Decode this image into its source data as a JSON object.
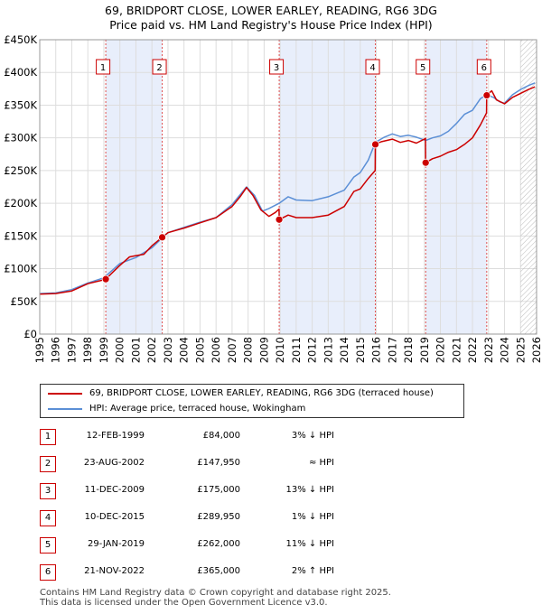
{
  "title_line1": "69, BRIDPORT CLOSE, LOWER EARLEY, READING, RG6 3DG",
  "title_line2": "Price paid vs. HM Land Registry's House Price Index (HPI)",
  "chart_data": {
    "type": "line",
    "ylim": [
      0,
      450000
    ],
    "xlim": [
      1995,
      2026
    ],
    "y_ticks": [
      0,
      50000,
      100000,
      150000,
      200000,
      250000,
      300000,
      350000,
      400000,
      450000
    ],
    "y_tick_labels": [
      "£0",
      "£50K",
      "£100K",
      "£150K",
      "£200K",
      "£250K",
      "£300K",
      "£350K",
      "£400K",
      "£450K"
    ],
    "x_ticks": [
      1995,
      1996,
      1997,
      1998,
      1999,
      2000,
      2001,
      2002,
      2003,
      2004,
      2005,
      2006,
      2007,
      2008,
      2009,
      2010,
      2011,
      2012,
      2013,
      2014,
      2015,
      2016,
      2017,
      2018,
      2019,
      2020,
      2021,
      2022,
      2023,
      2024,
      2025,
      2026
    ],
    "x_tick_labels": [
      "1995",
      "1996",
      "1997",
      "1998",
      "1999",
      "2000",
      "2001",
      "2002",
      "2003",
      "2004",
      "2005",
      "2006",
      "2007",
      "2008",
      "2009",
      "2010",
      "2011",
      "2012",
      "2013",
      "2014",
      "2015",
      "2016",
      "2017",
      "2018",
      "2019",
      "2020",
      "2021",
      "2022",
      "2023",
      "2024",
      "2025",
      "2026"
    ],
    "grid": true,
    "forecast_start": 2025.0,
    "shaded_periods": [
      [
        1999.12,
        2002.64
      ],
      [
        2009.94,
        2015.94
      ],
      [
        2019.08,
        2022.89
      ]
    ],
    "series": [
      {
        "name": "69, BRIDPORT CLOSE, LOWER EARLEY, READING, RG6 3DG (terraced house)",
        "color": "#cc0000",
        "x": [
          1995.0,
          1996.0,
          1997.0,
          1998.0,
          1999.0,
          1999.12,
          2000.0,
          2000.6,
          2001.0,
          2001.5,
          2002.0,
          2002.64,
          2003.0,
          2004.0,
          2005.0,
          2006.0,
          2007.0,
          2007.5,
          2007.9,
          2008.3,
          2008.8,
          2009.3,
          2009.7,
          2009.93,
          2009.94,
          2010.5,
          2011.0,
          2012.0,
          2013.0,
          2014.0,
          2014.6,
          2015.0,
          2015.5,
          2015.93,
          2015.94,
          2016.3,
          2017.0,
          2017.5,
          2018.0,
          2018.5,
          2019.07,
          2019.08,
          2019.5,
          2020.0,
          2020.5,
          2021.0,
          2021.5,
          2022.0,
          2022.5,
          2022.88,
          2022.89,
          2023.2,
          2023.5,
          2024.0,
          2024.5,
          2025.0,
          2025.5,
          2025.9
        ],
        "values": [
          61000,
          62000,
          66000,
          77000,
          83000,
          84000,
          105000,
          118000,
          120000,
          122000,
          135000,
          147950,
          155000,
          162000,
          170000,
          178000,
          195000,
          210000,
          224000,
          212000,
          190000,
          180000,
          186000,
          191000,
          175000,
          182000,
          178000,
          178000,
          182000,
          195000,
          218000,
          222000,
          238000,
          250000,
          289950,
          294000,
          298000,
          293000,
          296000,
          292000,
          299000,
          262000,
          268000,
          272000,
          278000,
          282000,
          290000,
          300000,
          320000,
          338000,
          365000,
          372000,
          358000,
          352000,
          362000,
          368000,
          374000,
          378000
        ]
      },
      {
        "name": "HPI: Average price, terraced house, Wokingham",
        "color": "#5b8fd6",
        "x": [
          1995.0,
          1996.0,
          1997.0,
          1998.0,
          1999.0,
          2000.0,
          2001.0,
          2002.0,
          2002.64,
          2003.0,
          2004.0,
          2005.0,
          2006.0,
          2007.0,
          2007.9,
          2008.4,
          2008.9,
          2009.3,
          2009.94,
          2010.5,
          2011.0,
          2012.0,
          2013.0,
          2014.0,
          2014.6,
          2015.0,
          2015.5,
          2015.94,
          2016.5,
          2017.0,
          2017.5,
          2018.0,
          2018.5,
          2019.08,
          2019.5,
          2020.0,
          2020.5,
          2021.0,
          2021.5,
          2022.0,
          2022.5,
          2022.89,
          2023.3,
          2023.7,
          2024.0,
          2024.5,
          2025.0,
          2025.5,
          2025.9
        ],
        "values": [
          62000,
          63000,
          68000,
          78000,
          86000,
          108000,
          117000,
          132000,
          147000,
          155000,
          163000,
          171000,
          178000,
          198000,
          225000,
          212000,
          188000,
          192000,
          200000,
          210000,
          205000,
          204000,
          210000,
          220000,
          240000,
          247000,
          266000,
          293000,
          301000,
          306000,
          302000,
          304000,
          301000,
          296000,
          300000,
          303000,
          310000,
          322000,
          336000,
          342000,
          360000,
          366000,
          362000,
          355000,
          353000,
          366000,
          374000,
          380000,
          384000
        ]
      }
    ],
    "sales": [
      {
        "label": "1",
        "x": 1999.12,
        "value": 84000
      },
      {
        "label": "2",
        "x": 2002.64,
        "value": 147950
      },
      {
        "label": "3",
        "x": 2009.94,
        "value": 175000
      },
      {
        "label": "4",
        "x": 2015.94,
        "value": 289950
      },
      {
        "label": "5",
        "x": 2019.08,
        "value": 262000
      },
      {
        "label": "6",
        "x": 2022.89,
        "value": 365000
      }
    ]
  },
  "legend": {
    "red_label": "69, BRIDPORT CLOSE, LOWER EARLEY, READING, RG6 3DG (terraced house)",
    "blue_label": "HPI: Average price, terraced house, Wokingham",
    "red_color": "#cc0000",
    "blue_color": "#5b8fd6"
  },
  "table": [
    {
      "num": "1",
      "date": "12-FEB-1999",
      "price": "£84,000",
      "hpi": "3% ↓ HPI"
    },
    {
      "num": "2",
      "date": "23-AUG-2002",
      "price": "£147,950",
      "hpi": "≈ HPI"
    },
    {
      "num": "3",
      "date": "11-DEC-2009",
      "price": "£175,000",
      "hpi": "13% ↓ HPI"
    },
    {
      "num": "4",
      "date": "10-DEC-2015",
      "price": "£289,950",
      "hpi": "1% ↓ HPI"
    },
    {
      "num": "5",
      "date": "29-JAN-2019",
      "price": "£262,000",
      "hpi": "11% ↓ HPI"
    },
    {
      "num": "6",
      "date": "21-NOV-2022",
      "price": "£365,000",
      "hpi": "2% ↑ HPI"
    }
  ],
  "footer": {
    "line1": "Contains HM Land Registry data © Crown copyright and database right 2025.",
    "line2": "This data is licensed under the Open Government Licence v3.0."
  }
}
